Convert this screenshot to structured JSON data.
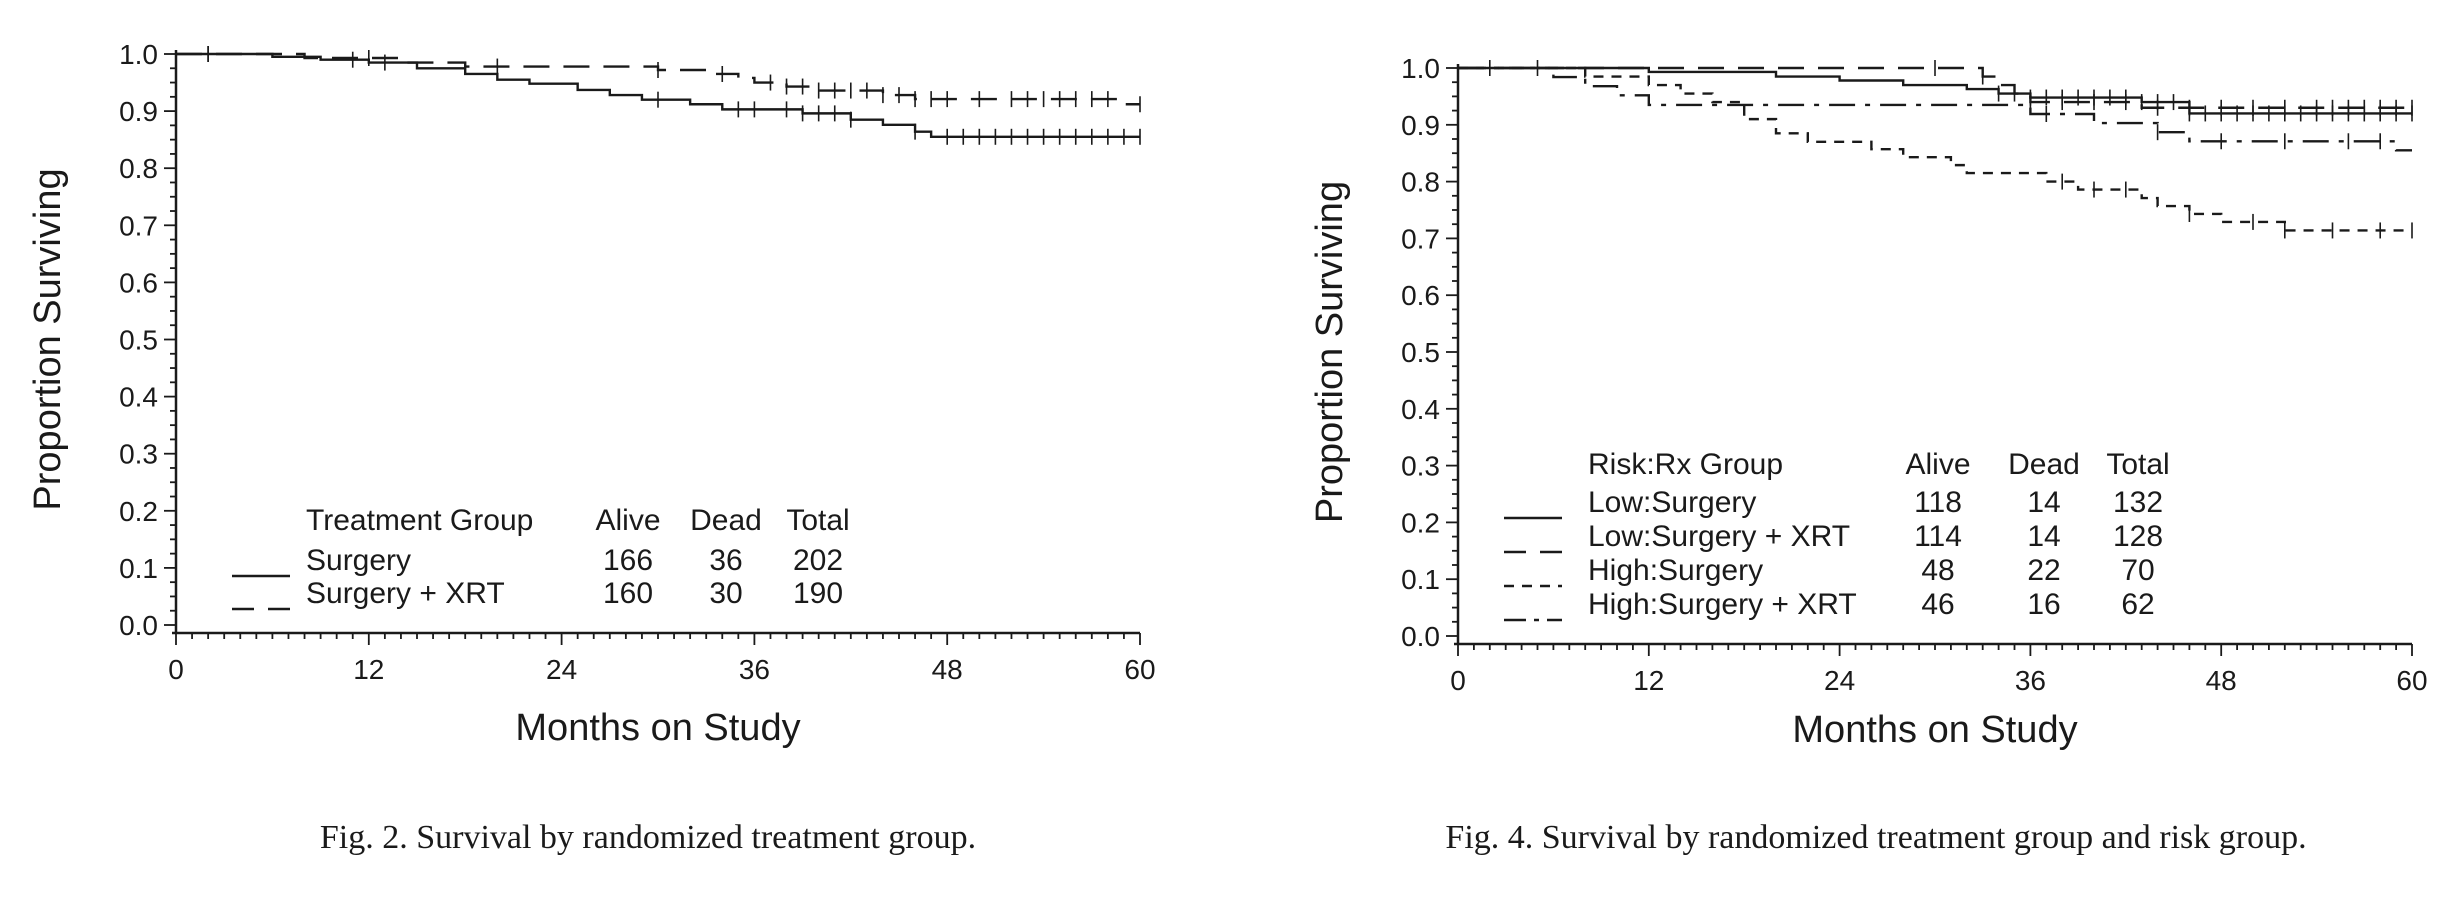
{
  "chart_data": [
    {
      "type": "line",
      "subtype": "kaplan-meier",
      "caption": "Fig. 2. Survival by randomized treatment group.",
      "xlabel": "Months on Study",
      "ylabel": "Proportion Surviving",
      "xlim": [
        0,
        60
      ],
      "ylim": [
        0.0,
        1.0
      ],
      "xticks": [
        "0",
        "12",
        "24",
        "36",
        "48",
        "60"
      ],
      "yticks": [
        "0.0",
        "0.1",
        "0.2",
        "0.3",
        "0.4",
        "0.5",
        "0.6",
        "0.7",
        "0.8",
        "0.9",
        "1.0"
      ],
      "grid": false,
      "legend": {
        "placement": "bottom-left",
        "header": [
          "Treatment Group",
          "Alive",
          "Dead",
          "Total"
        ],
        "rows": [
          {
            "label": "Surgery",
            "alive": "166",
            "dead": "36",
            "total": "202",
            "style": "solid"
          },
          {
            "label": "Surgery + XRT",
            "alive": "160",
            "dead": "30",
            "total": "190",
            "style": "longdash"
          }
        ]
      },
      "series": [
        {
          "name": "Surgery",
          "style": "solid",
          "steps": [
            [
              0,
              1.0
            ],
            [
              6,
              0.995
            ],
            [
              9,
              0.99
            ],
            [
              12,
              0.985
            ],
            [
              15,
              0.975
            ],
            [
              18,
              0.965
            ],
            [
              20,
              0.955
            ],
            [
              22,
              0.948
            ],
            [
              25,
              0.937
            ],
            [
              27,
              0.928
            ],
            [
              29,
              0.92
            ],
            [
              32,
              0.912
            ],
            [
              34,
              0.903
            ],
            [
              39,
              0.896
            ],
            [
              42,
              0.885
            ],
            [
              44,
              0.876
            ],
            [
              46,
              0.864
            ],
            [
              47,
              0.855
            ],
            [
              60,
              0.855
            ]
          ],
          "censor_times": [
            2,
            11,
            13,
            30,
            35,
            36,
            38,
            39,
            40,
            41,
            42,
            46,
            48,
            49,
            50,
            51,
            52,
            53,
            54,
            55,
            56,
            57,
            58,
            59,
            60
          ]
        },
        {
          "name": "Surgery + XRT",
          "style": "longdash",
          "steps": [
            [
              0,
              1.0
            ],
            [
              8,
              0.993
            ],
            [
              14,
              0.985
            ],
            [
              18,
              0.978
            ],
            [
              30,
              0.972
            ],
            [
              33,
              0.965
            ],
            [
              35,
              0.958
            ],
            [
              36,
              0.95
            ],
            [
              38,
              0.943
            ],
            [
              40,
              0.936
            ],
            [
              44,
              0.928
            ],
            [
              46,
              0.921
            ],
            [
              59,
              0.912
            ],
            [
              60,
              0.912
            ]
          ],
          "censor_times": [
            2,
            12,
            20,
            30,
            34,
            37,
            38,
            39,
            40,
            41,
            42,
            43,
            44,
            45,
            46,
            47,
            48,
            50,
            52,
            53,
            54,
            55,
            56,
            57,
            58,
            60
          ]
        }
      ]
    },
    {
      "type": "line",
      "subtype": "kaplan-meier",
      "caption": "Fig. 4. Survival by randomized treatment group and risk group.",
      "xlabel": "Months on Study",
      "ylabel": "Proportion Surviving",
      "xlim": [
        0,
        60
      ],
      "ylim": [
        0.0,
        1.0
      ],
      "xticks": [
        "0",
        "12",
        "24",
        "36",
        "48",
        "60"
      ],
      "yticks": [
        "0.0",
        "0.1",
        "0.2",
        "0.3",
        "0.4",
        "0.5",
        "0.6",
        "0.7",
        "0.8",
        "0.9",
        "1.0"
      ],
      "grid": false,
      "legend": {
        "placement": "bottom-left",
        "header": [
          "Risk:Rx Group",
          "Alive",
          "Dead",
          "Total"
        ],
        "rows": [
          {
            "label": "Low:Surgery",
            "alive": "118",
            "dead": "14",
            "total": "132",
            "style": "solid"
          },
          {
            "label": "Low:Surgery + XRT",
            "alive": "114",
            "dead": "14",
            "total": "128",
            "style": "longdash"
          },
          {
            "label": "High:Surgery",
            "alive": "48",
            "dead": "22",
            "total": "70",
            "style": "shortdash"
          },
          {
            "label": "High:Surgery + XRT",
            "alive": "46",
            "dead": "16",
            "total": "62",
            "style": "dashdot"
          }
        ]
      },
      "series": [
        {
          "name": "Low:Surgery",
          "style": "solid",
          "steps": [
            [
              0,
              1.0
            ],
            [
              12,
              0.993
            ],
            [
              20,
              0.985
            ],
            [
              24,
              0.978
            ],
            [
              28,
              0.97
            ],
            [
              32,
              0.963
            ],
            [
              34,
              0.955
            ],
            [
              36,
              0.948
            ],
            [
              43,
              0.94
            ],
            [
              46,
              0.92
            ],
            [
              60,
              0.92
            ]
          ],
          "censor_times": [
            2,
            34,
            35,
            36,
            37,
            38,
            39,
            40,
            41,
            42,
            43,
            44,
            45,
            46,
            47,
            48,
            49,
            50,
            51,
            52,
            53,
            54,
            55,
            56,
            57,
            58,
            59,
            60
          ]
        },
        {
          "name": "Low:Surgery + XRT",
          "style": "longdash",
          "steps": [
            [
              0,
              1.0
            ],
            [
              33,
              0.985
            ],
            [
              34,
              0.97
            ],
            [
              35,
              0.955
            ],
            [
              36,
              0.94
            ],
            [
              43,
              0.93
            ],
            [
              60,
              0.93
            ]
          ],
          "censor_times": [
            30,
            33,
            36,
            38,
            40,
            42,
            44,
            46,
            48,
            50,
            52,
            54,
            55,
            56,
            57,
            58,
            59,
            60
          ]
        },
        {
          "name": "High:Surgery",
          "style": "shortdash",
          "steps": [
            [
              0,
              1.0
            ],
            [
              8,
              0.985
            ],
            [
              12,
              0.97
            ],
            [
              14,
              0.955
            ],
            [
              16,
              0.94
            ],
            [
              18,
              0.91
            ],
            [
              20,
              0.885
            ],
            [
              22,
              0.87
            ],
            [
              26,
              0.857
            ],
            [
              28,
              0.843
            ],
            [
              31,
              0.829
            ],
            [
              32,
              0.815
            ],
            [
              37,
              0.8
            ],
            [
              39,
              0.786
            ],
            [
              43,
              0.771
            ],
            [
              44,
              0.757
            ],
            [
              46,
              0.743
            ],
            [
              48,
              0.729
            ],
            [
              52,
              0.714
            ],
            [
              60,
              0.714
            ]
          ],
          "censor_times": [
            38,
            40,
            42,
            46,
            50,
            52,
            55,
            58,
            60
          ]
        },
        {
          "name": "High:Surgery + XRT",
          "style": "dashdot",
          "steps": [
            [
              0,
              1.0
            ],
            [
              6,
              0.984
            ],
            [
              8,
              0.968
            ],
            [
              10,
              0.952
            ],
            [
              12,
              0.935
            ],
            [
              36,
              0.919
            ],
            [
              40,
              0.903
            ],
            [
              44,
              0.887
            ],
            [
              46,
              0.871
            ],
            [
              59,
              0.855
            ],
            [
              60,
              0.855
            ]
          ],
          "censor_times": [
            5,
            37,
            44,
            48,
            52,
            56,
            58
          ]
        }
      ]
    }
  ]
}
